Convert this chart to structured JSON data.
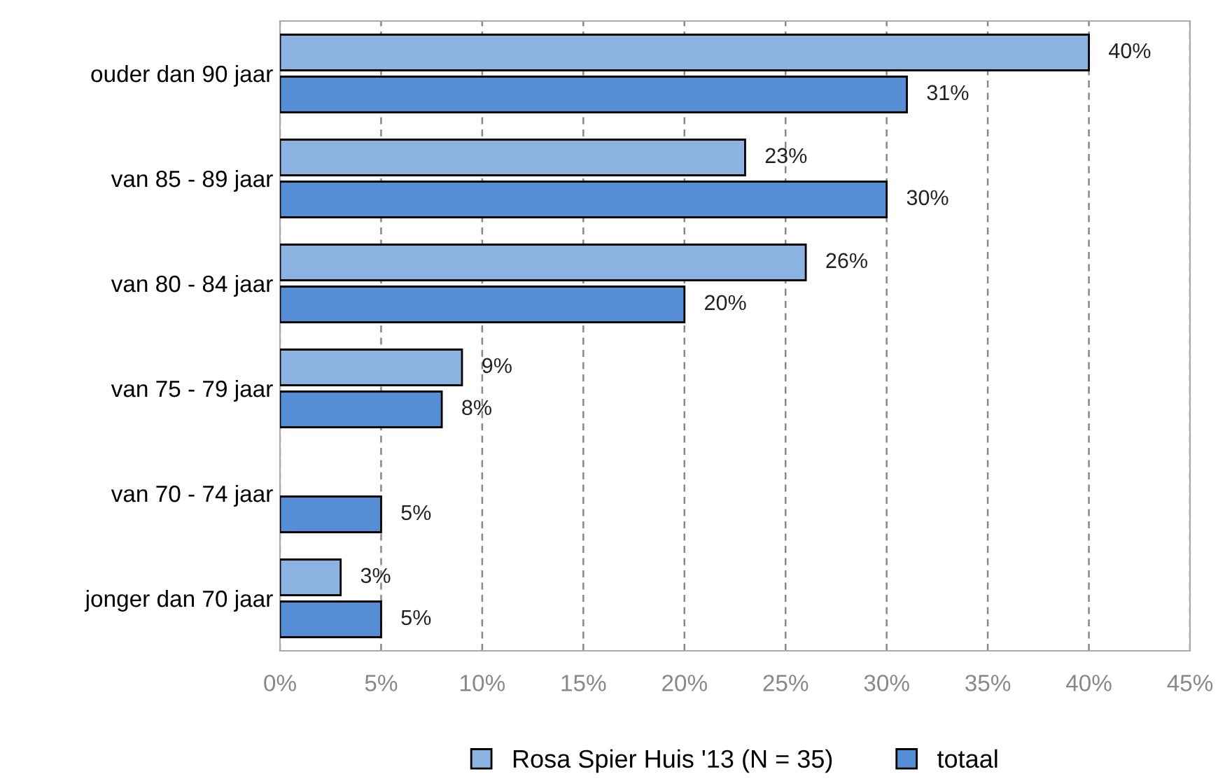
{
  "chart_data": {
    "type": "bar",
    "orientation": "horizontal",
    "categories": [
      "ouder dan 90 jaar",
      "van 85 - 89 jaar",
      "van 80 - 84 jaar",
      "van 75 - 79 jaar",
      "van 70 - 74 jaar",
      "jonger dan 70 jaar"
    ],
    "series": [
      {
        "name": "Rosa Spier Huis '13 (N = 35)",
        "color": "#8db3e2",
        "values": [
          40,
          23,
          26,
          9,
          null,
          3
        ],
        "value_labels": [
          "40%",
          "23%",
          "26%",
          "9%",
          null,
          "3%"
        ]
      },
      {
        "name": "totaal",
        "color": "#558ed5",
        "values": [
          31,
          30,
          20,
          8,
          5,
          5
        ],
        "value_labels": [
          "31%",
          "30%",
          "20%",
          "8%",
          "5%",
          "5%"
        ]
      }
    ],
    "xlim": [
      0,
      45
    ],
    "xticks": [
      {
        "value": 0,
        "label": "0%"
      },
      {
        "value": 5,
        "label": "5%"
      },
      {
        "value": 10,
        "label": "10%"
      },
      {
        "value": 15,
        "label": "15%"
      },
      {
        "value": 20,
        "label": "20%"
      },
      {
        "value": 25,
        "label": "25%"
      },
      {
        "value": 30,
        "label": "30%"
      },
      {
        "value": 35,
        "label": "35%"
      },
      {
        "value": 40,
        "label": "40%"
      },
      {
        "value": 45,
        "label": "45%"
      }
    ],
    "grid": "x",
    "legend": "bottom"
  }
}
